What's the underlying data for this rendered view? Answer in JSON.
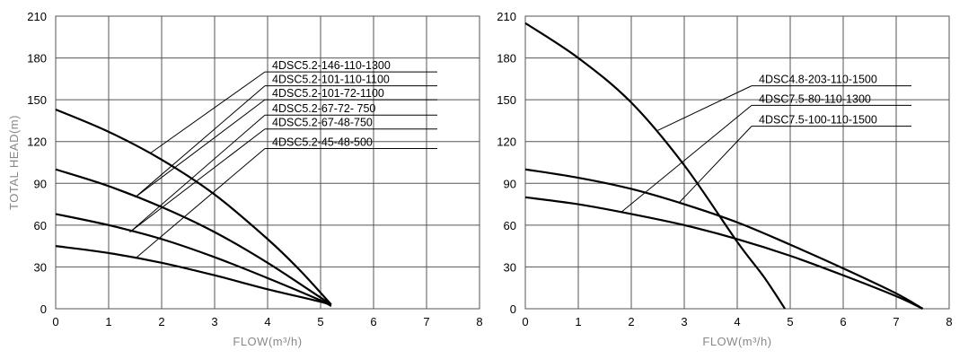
{
  "chart_data": [
    {
      "type": "line",
      "ylabel": "TOTAL HEAD(m)",
      "xlabel": "FLOW(m³/h)",
      "xlim": [
        0,
        8
      ],
      "ylim": [
        0,
        210
      ],
      "xticks": [
        "0",
        "1",
        "2",
        "3",
        "4",
        "5",
        "6",
        "7",
        "8"
      ],
      "yticks": [
        "0",
        "30",
        "60",
        "90",
        "120",
        "150",
        "180",
        "210"
      ],
      "grid": true,
      "series": [
        {
          "name": "4DSC5.2-146-110-1300",
          "x": [
            0,
            1,
            2,
            3,
            4,
            4.6,
            5.2
          ],
          "y": [
            143,
            127,
            107,
            82,
            50,
            28,
            3
          ],
          "leader_point": [
            1.8,
            112
          ],
          "label_y": 170
        },
        {
          "name": "4DSC5.2-101-110-1100",
          "x": [
            0,
            1,
            2,
            3,
            4,
            5,
            5.2
          ],
          "y": [
            100,
            88,
            73,
            55,
            33,
            8,
            3
          ],
          "leader_point": [
            1.5,
            80
          ],
          "label_y": 160
        },
        {
          "name": "4DSC5.2-101-72-1100",
          "x": [
            0,
            1,
            2,
            3,
            4,
            5,
            5.2
          ],
          "y": [
            100,
            88,
            73,
            55,
            33,
            8,
            3
          ],
          "leader_point": [
            1.5,
            80
          ],
          "label_y": 150
        },
        {
          "name": "4DSC5.2-67-72- 750",
          "x": [
            0,
            1,
            2,
            3,
            4,
            5,
            5.2
          ],
          "y": [
            68,
            60,
            50,
            37,
            22,
            6,
            2
          ],
          "leader_point": [
            1.4,
            55
          ],
          "label_y": 139
        },
        {
          "name": "4DSC5.2-67-48-750",
          "x": [
            0,
            1,
            2,
            3,
            4,
            5,
            5.2
          ],
          "y": [
            68,
            60,
            50,
            37,
            22,
            6,
            2
          ],
          "leader_point": [
            1.4,
            55
          ],
          "label_y": 129
        },
        {
          "name": "4DSC5.2-45-48-500",
          "x": [
            0,
            1,
            2,
            3,
            4,
            5,
            5.2
          ],
          "y": [
            45,
            40,
            33,
            24,
            14,
            5,
            2
          ],
          "leader_point": [
            1.5,
            36
          ],
          "label_y": 115
        }
      ],
      "draw_curves": [
        0,
        1,
        3,
        5
      ]
    },
    {
      "type": "line",
      "ylabel": "",
      "xlabel": "FLOW(m³/h)",
      "xlim": [
        0,
        8
      ],
      "ylim": [
        0,
        210
      ],
      "xticks": [
        "0",
        "1",
        "2",
        "3",
        "4",
        "5",
        "6",
        "7",
        "8"
      ],
      "yticks": [
        "0",
        "30",
        "60",
        "90",
        "120",
        "150",
        "180",
        "210"
      ],
      "grid": true,
      "series": [
        {
          "name": "4DSC4.8-203-110-1500",
          "x": [
            0,
            1,
            2,
            3,
            4,
            4.5,
            4.9
          ],
          "y": [
            205,
            180,
            148,
            103,
            48,
            23,
            0
          ],
          "leader_point": [
            2.5,
            128
          ],
          "label_y": 160
        },
        {
          "name": "4DSC7.5-80-110-1300",
          "x": [
            0,
            1,
            2,
            3,
            4,
            5,
            6,
            7,
            7.5
          ],
          "y": [
            80,
            75,
            68,
            60,
            50,
            38,
            24,
            9,
            0
          ],
          "leader_point": [
            1.8,
            69
          ],
          "label_y": 146
        },
        {
          "name": "4DSC7.5-100-110-1500",
          "x": [
            0,
            1,
            2,
            3,
            4,
            5,
            6,
            7,
            7.5
          ],
          "y": [
            100,
            94,
            86,
            75,
            62,
            46,
            29,
            11,
            0
          ],
          "leader_point": [
            2.9,
            76
          ],
          "label_y": 131
        }
      ],
      "draw_curves": [
        0,
        1,
        2
      ]
    }
  ]
}
